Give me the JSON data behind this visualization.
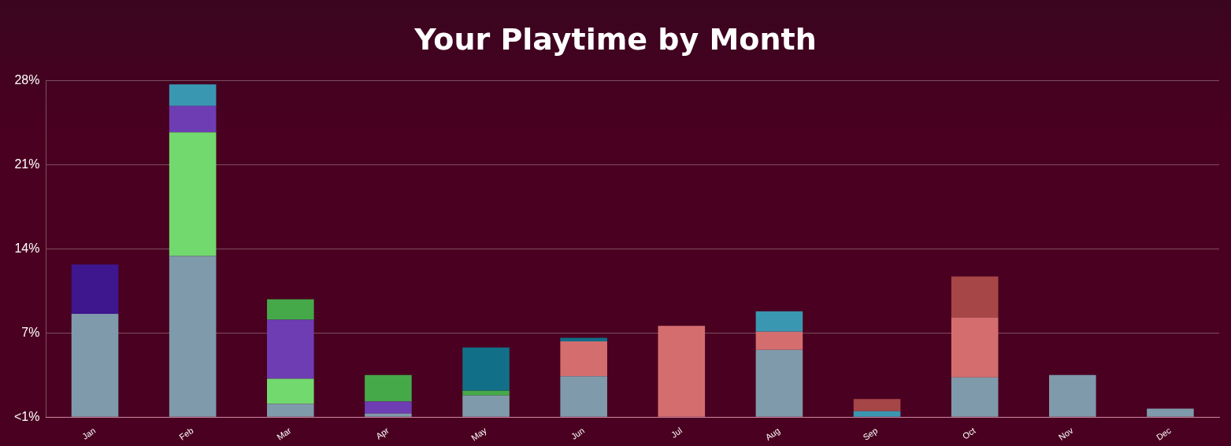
{
  "chart_data": {
    "type": "bar",
    "title": "Your Playtime by Month",
    "stacked": true,
    "grid": "y",
    "legend": false,
    "categories": [
      "Jan",
      "Feb",
      "Mar",
      "Apr",
      "May",
      "Jun",
      "Jul",
      "Aug",
      "Sep",
      "Oct",
      "Nov",
      "Dec"
    ],
    "ylim": [
      0,
      28
    ],
    "yticks": [
      {
        "value": 0,
        "label": "<1%"
      },
      {
        "value": 7,
        "label": "7%"
      },
      {
        "value": 14,
        "label": "14%"
      },
      {
        "value": 21,
        "label": "21%"
      },
      {
        "value": 28,
        "label": "28%"
      }
    ],
    "series": [
      {
        "color": "#7f9aab",
        "values": [
          8.6,
          13.4,
          1.1,
          0.3,
          1.8,
          3.4,
          null,
          5.6,
          null,
          3.3,
          3.5,
          0.7
        ]
      },
      {
        "color": "#3e168e",
        "values": [
          4.1,
          null,
          null,
          null,
          null,
          null,
          null,
          null,
          null,
          null,
          null,
          null
        ]
      },
      {
        "color": "#72d96f",
        "values": [
          null,
          10.3,
          2.1,
          null,
          null,
          null,
          null,
          null,
          null,
          null,
          null,
          null
        ]
      },
      {
        "color": "#6e3db4",
        "values": [
          null,
          2.2,
          4.9,
          1.0,
          null,
          null,
          null,
          null,
          null,
          null,
          null,
          null
        ]
      },
      {
        "color": "#45a94a",
        "values": [
          null,
          null,
          1.7,
          2.2,
          0.4,
          null,
          null,
          null,
          null,
          null,
          null,
          null
        ]
      },
      {
        "color": "#d46e6e",
        "values": [
          null,
          null,
          null,
          null,
          null,
          2.9,
          7.6,
          1.5,
          null,
          5.0,
          null,
          null
        ]
      },
      {
        "color": "#3a97b2",
        "values": [
          null,
          1.8,
          null,
          null,
          null,
          null,
          null,
          1.7,
          0.5,
          null,
          null,
          null
        ]
      },
      {
        "color": "#126f88",
        "values": [
          null,
          null,
          null,
          null,
          3.6,
          0.3,
          null,
          null,
          null,
          null,
          null,
          null
        ]
      },
      {
        "color": "#a74646",
        "values": [
          null,
          null,
          null,
          null,
          null,
          null,
          null,
          null,
          1.0,
          3.4,
          null,
          null
        ]
      }
    ]
  }
}
